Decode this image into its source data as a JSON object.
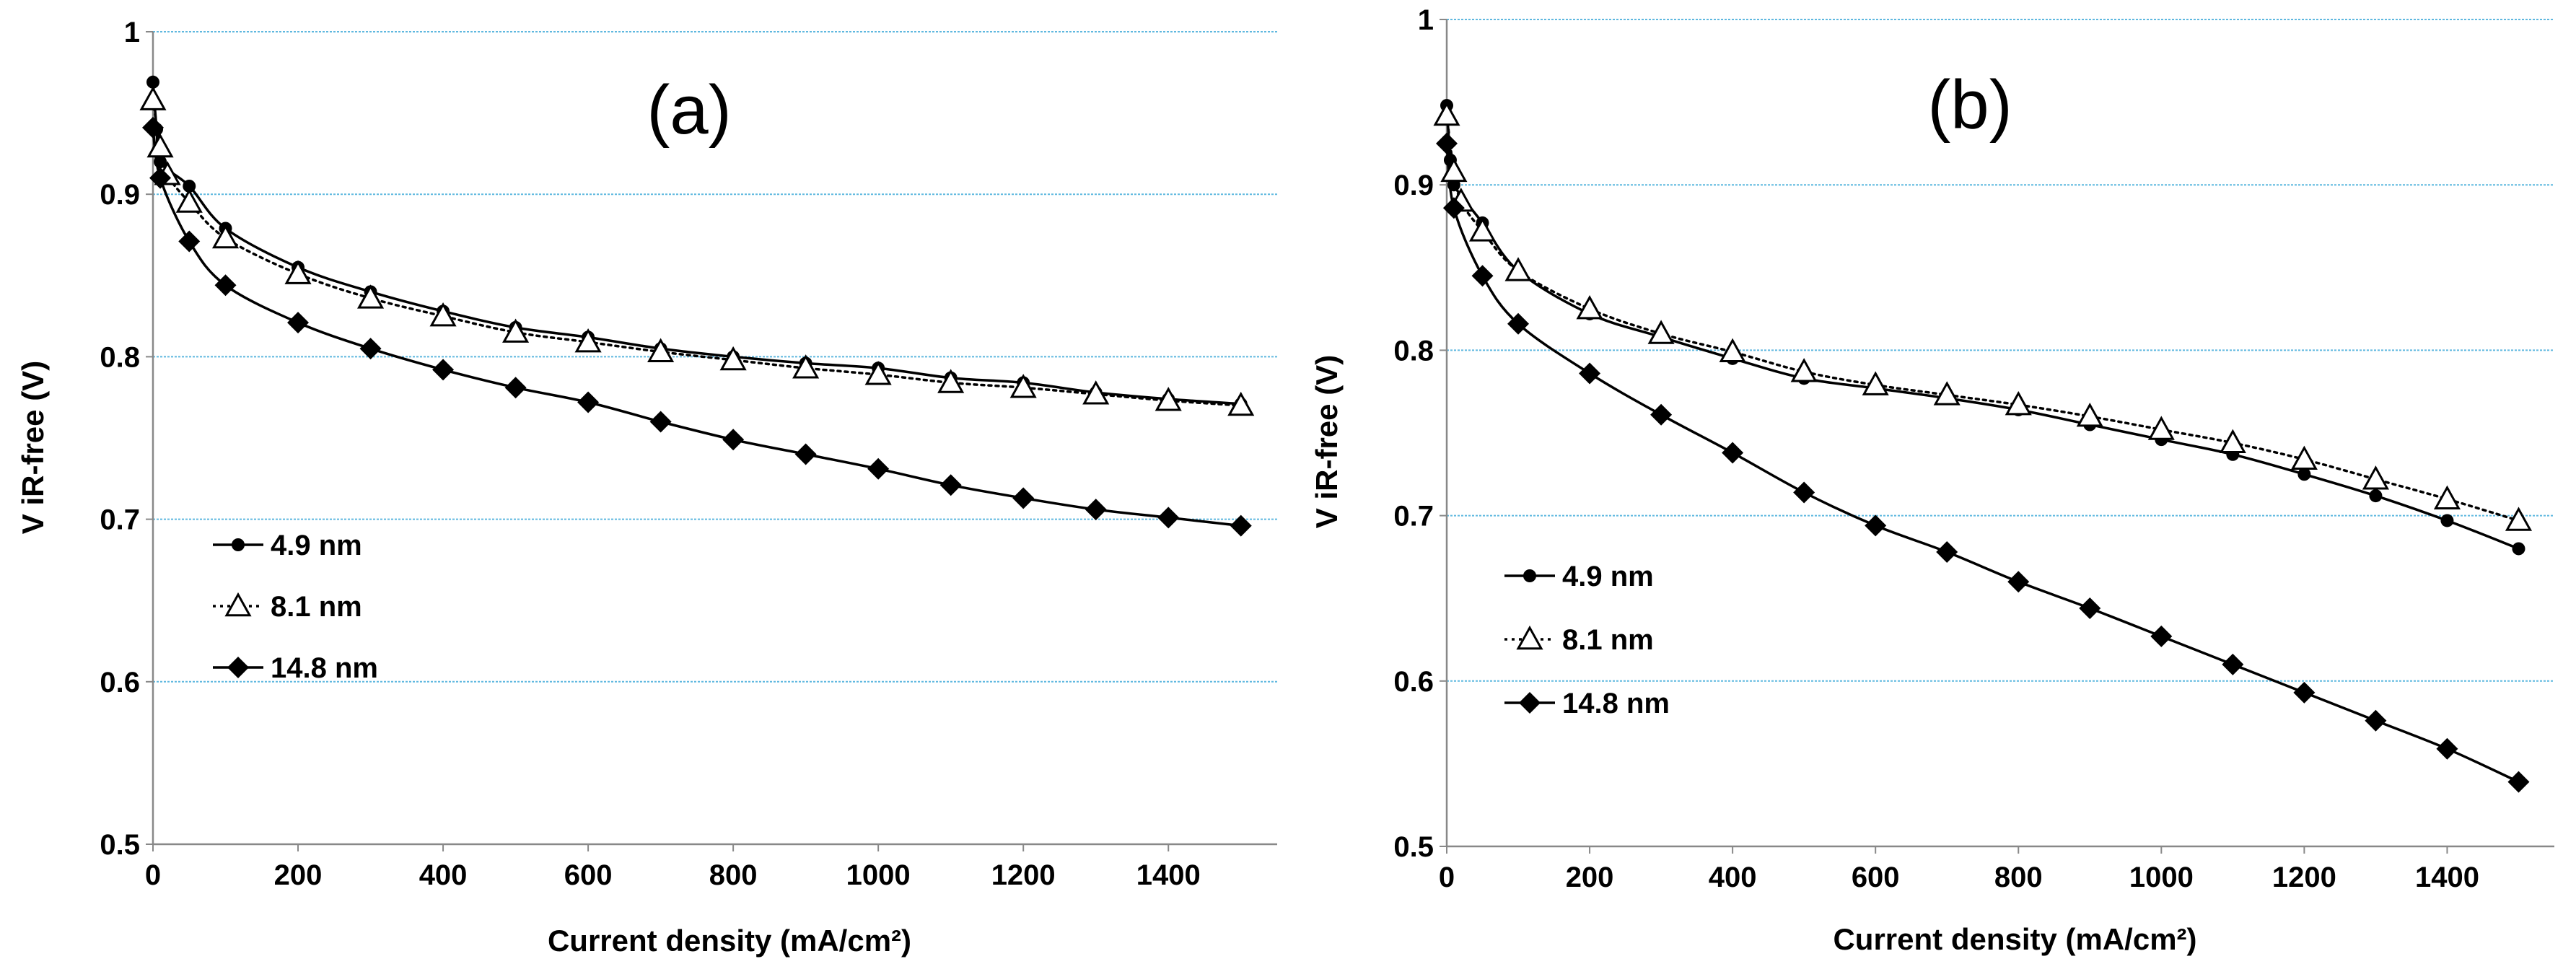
{
  "colors": {
    "gridline": "#5fb8df",
    "axis": "#888888",
    "series": "#000000",
    "background": "#ffffff"
  },
  "chart_data": [
    {
      "type": "line",
      "title": "(a)",
      "xlabel": "Current density (mA/cm²)",
      "ylabel": "V iR-free (V)",
      "xlim": [
        0,
        1550
      ],
      "ylim": [
        0.5,
        1.0
      ],
      "xticks": [
        0,
        200,
        400,
        600,
        800,
        1000,
        1200,
        1400
      ],
      "yticks": [
        0.5,
        0.6,
        0.7,
        0.8,
        0.9,
        1.0
      ],
      "ytick_labels": [
        "0.5",
        "0.6",
        "0.7",
        "0.8",
        "0.9",
        "1"
      ],
      "grid": "horizontal",
      "legend_position": "lower-left",
      "series": [
        {
          "name": "4.9 nm",
          "marker": "circle",
          "line": "solid",
          "x": [
            0,
            5,
            10,
            50,
            100,
            200,
            300,
            400,
            500,
            600,
            700,
            800,
            900,
            1000,
            1100,
            1200,
            1300,
            1400,
            1500
          ],
          "y": [
            0.969,
            0.94,
            0.92,
            0.905,
            0.879,
            0.855,
            0.84,
            0.828,
            0.818,
            0.812,
            0.805,
            0.8,
            0.796,
            0.793,
            0.787,
            0.784,
            0.778,
            0.774,
            0.771
          ]
        },
        {
          "name": "8.1 nm",
          "marker": "triangle-open",
          "line": "dotted",
          "x": [
            0,
            10,
            20,
            50,
            100,
            200,
            300,
            400,
            500,
            600,
            700,
            800,
            900,
            1000,
            1100,
            1200,
            1300,
            1400,
            1500
          ],
          "y": [
            0.958,
            0.929,
            0.912,
            0.895,
            0.873,
            0.851,
            0.836,
            0.825,
            0.815,
            0.809,
            0.803,
            0.798,
            0.793,
            0.789,
            0.784,
            0.781,
            0.777,
            0.773,
            0.77
          ]
        },
        {
          "name": "14.8 nm",
          "marker": "diamond",
          "line": "solid",
          "x": [
            0,
            10,
            50,
            100,
            200,
            300,
            400,
            500,
            600,
            700,
            800,
            900,
            1000,
            1100,
            1200,
            1300,
            1400,
            1500
          ],
          "y": [
            0.941,
            0.91,
            0.871,
            0.844,
            0.821,
            0.805,
            0.792,
            0.781,
            0.772,
            0.76,
            0.749,
            0.74,
            0.731,
            0.721,
            0.713,
            0.706,
            0.701,
            0.696
          ]
        }
      ]
    },
    {
      "type": "line",
      "title": "(b)",
      "xlabel": "Current density (mA/cm²)",
      "ylabel": "V iR-free (V)",
      "xlim": [
        0,
        1550
      ],
      "ylim": [
        0.5,
        1.0
      ],
      "xticks": [
        0,
        200,
        400,
        600,
        800,
        1000,
        1200,
        1400
      ],
      "yticks": [
        0.5,
        0.6,
        0.7,
        0.8,
        0.9,
        1.0
      ],
      "ytick_labels": [
        "0.5",
        "0.6",
        "0.7",
        "0.8",
        "0.9",
        "1"
      ],
      "grid": "horizontal",
      "legend_position": "lower-left",
      "series": [
        {
          "name": "4.9 nm",
          "marker": "circle",
          "line": "solid",
          "x": [
            0,
            5,
            10,
            50,
            100,
            200,
            300,
            400,
            500,
            600,
            700,
            800,
            900,
            1000,
            1100,
            1200,
            1300,
            1400,
            1500
          ],
          "y": [
            0.948,
            0.915,
            0.9,
            0.877,
            0.848,
            0.822,
            0.808,
            0.795,
            0.783,
            0.777,
            0.771,
            0.764,
            0.755,
            0.746,
            0.737,
            0.725,
            0.712,
            0.697,
            0.68
          ]
        },
        {
          "name": "8.1 nm",
          "marker": "triangle-open",
          "line": "dotted",
          "x": [
            0,
            10,
            20,
            50,
            100,
            200,
            300,
            400,
            500,
            600,
            700,
            800,
            900,
            1000,
            1100,
            1200,
            1300,
            1400,
            1500
          ],
          "y": [
            0.942,
            0.908,
            0.89,
            0.872,
            0.848,
            0.825,
            0.81,
            0.799,
            0.787,
            0.779,
            0.773,
            0.767,
            0.76,
            0.752,
            0.744,
            0.734,
            0.722,
            0.71,
            0.697
          ]
        },
        {
          "name": "14.8 nm",
          "marker": "diamond",
          "line": "solid",
          "x": [
            0,
            10,
            50,
            100,
            200,
            300,
            400,
            500,
            600,
            700,
            800,
            900,
            1000,
            1100,
            1200,
            1300,
            1400,
            1500
          ],
          "y": [
            0.925,
            0.886,
            0.845,
            0.816,
            0.786,
            0.761,
            0.738,
            0.714,
            0.694,
            0.678,
            0.66,
            0.644,
            0.627,
            0.61,
            0.593,
            0.576,
            0.559,
            0.539
          ]
        }
      ]
    }
  ]
}
